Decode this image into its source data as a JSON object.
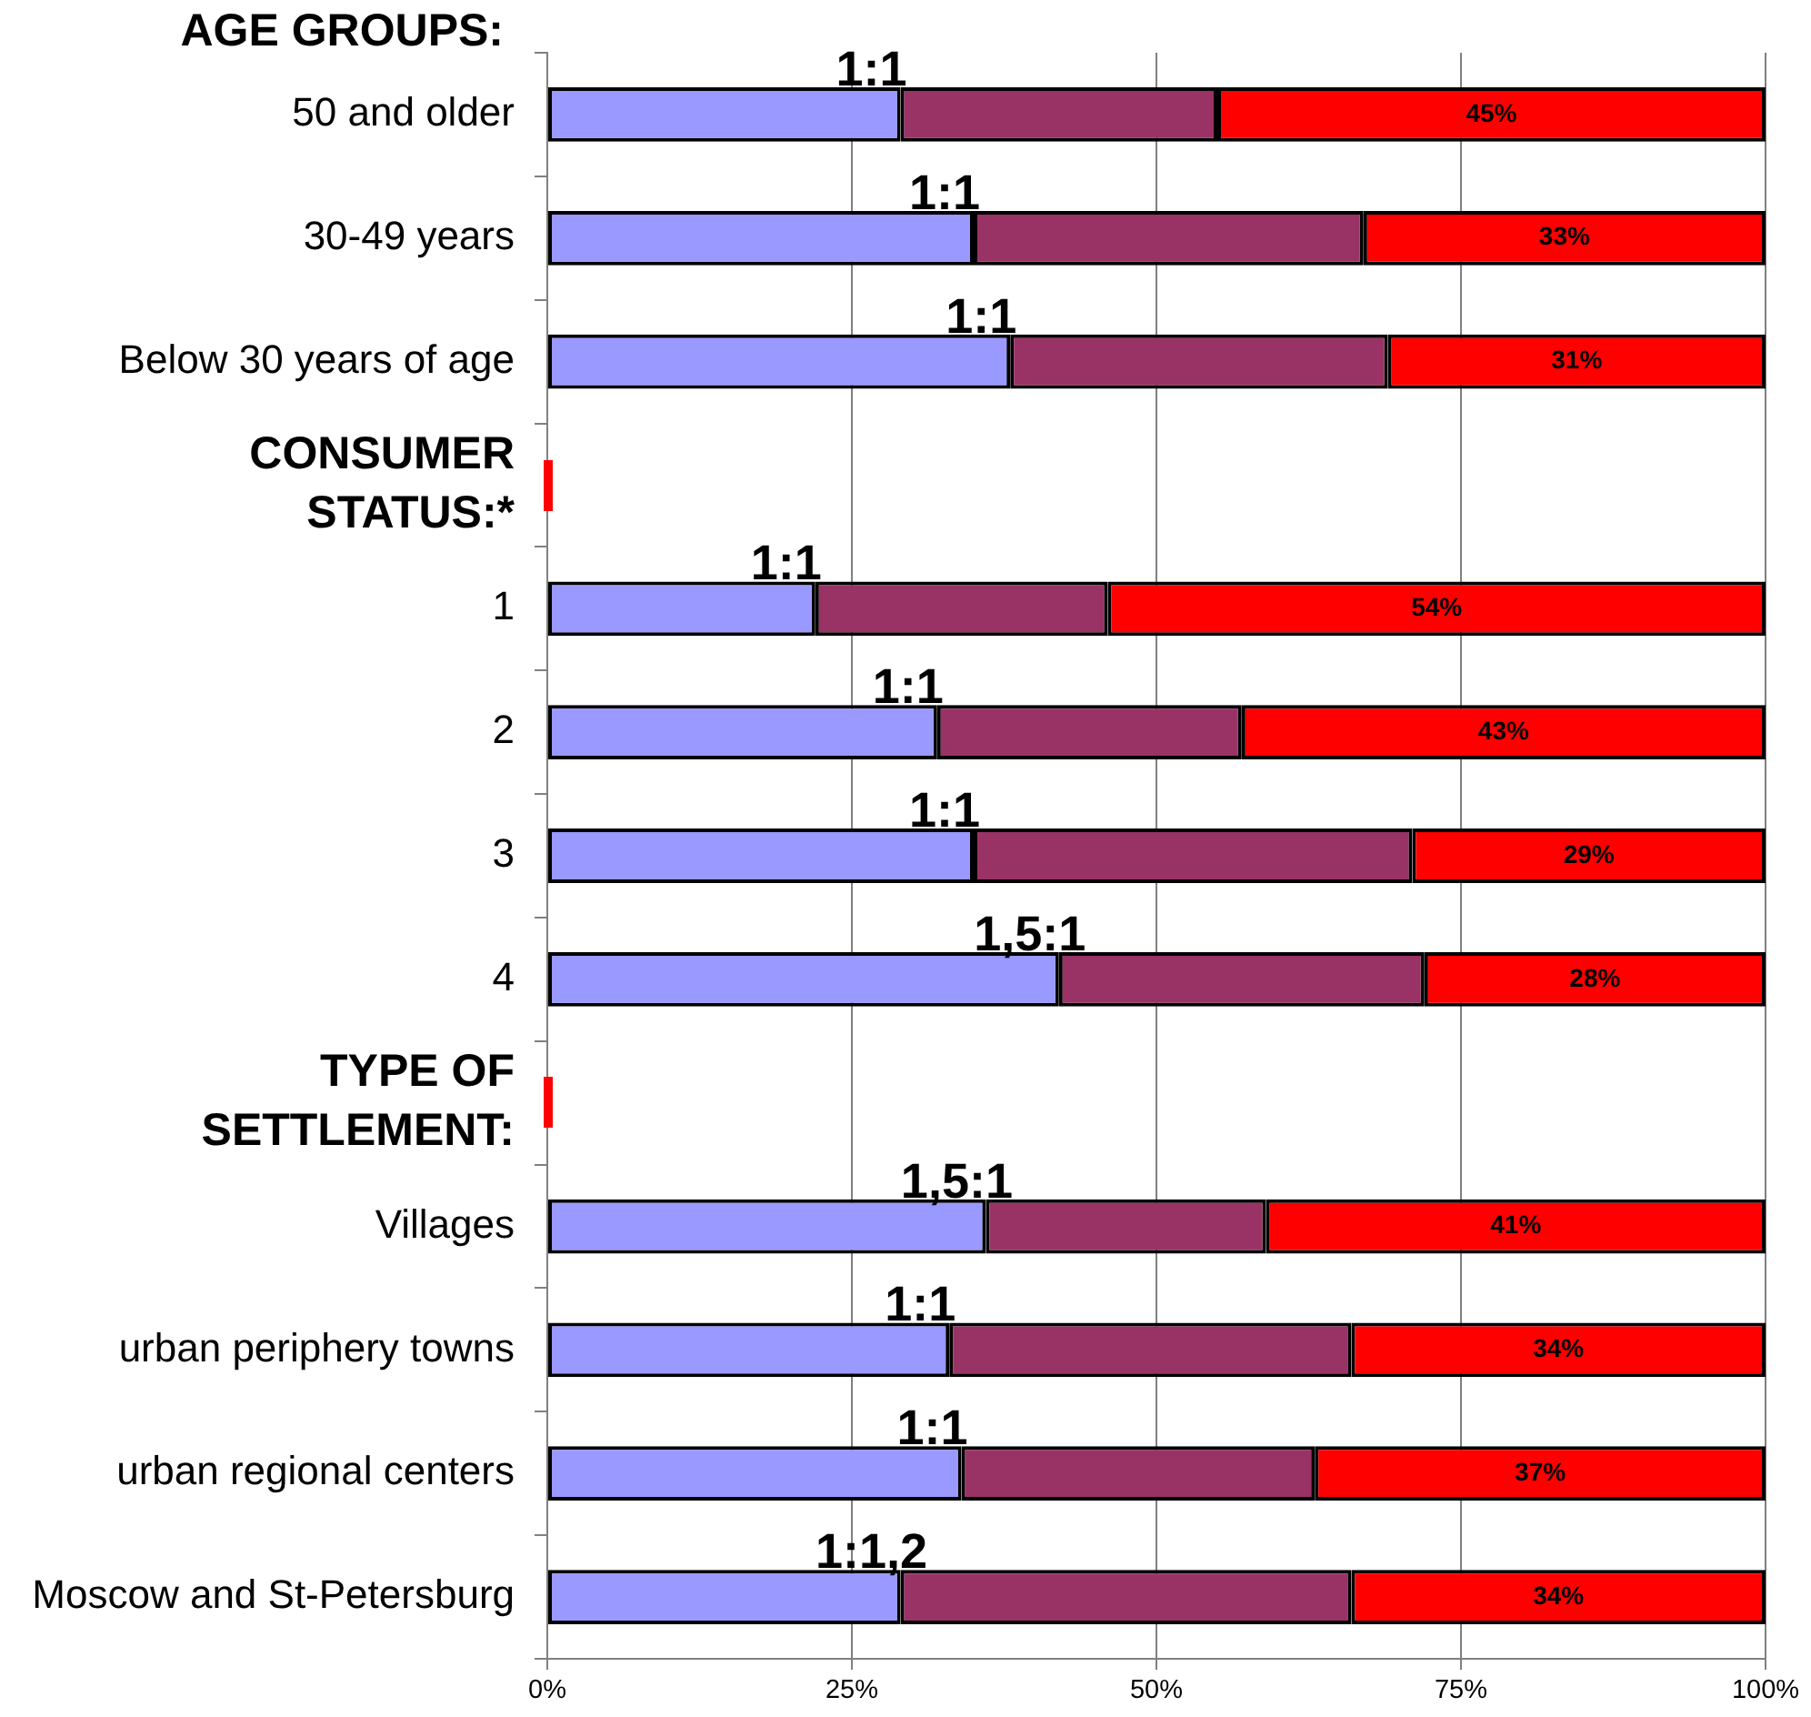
{
  "chart_data": {
    "type": "bar",
    "orientation": "horizontal",
    "stacked": true,
    "categories": [
      "50 and older",
      "30-49 years",
      "Below 30 years of age",
      null,
      "1",
      "2",
      "3",
      "4",
      null,
      "Villages",
      "urban periphery towns",
      "urban regional centers",
      "Moscow and St-Petersburg"
    ],
    "series": [
      {
        "color": "#9999ff",
        "values": [
          29,
          35,
          38,
          null,
          22,
          32,
          35,
          42,
          null,
          36,
          33,
          34,
          29
        ],
        "value_labels": [
          "1:1",
          "1:1",
          "1:1",
          null,
          "1:1",
          "1:1",
          "1:1",
          "1,5:1",
          null,
          "1,5:1",
          "1:1",
          "1:1",
          "1:1,2"
        ]
      },
      {
        "color": "#993366",
        "values": [
          26,
          32,
          31,
          null,
          24,
          25,
          36,
          30,
          null,
          23,
          33,
          29,
          37
        ]
      },
      {
        "color": "#ff0000",
        "values": [
          45,
          33,
          31,
          null,
          54,
          43,
          29,
          28,
          null,
          41,
          34,
          37,
          34
        ],
        "value_labels": [
          "45%",
          "33%",
          "31%",
          null,
          "54%",
          "43%",
          "29%",
          "28%",
          null,
          "41%",
          "34%",
          "37%",
          "34%"
        ]
      }
    ],
    "xlim": [
      0,
      100
    ],
    "xticks": [
      {
        "value": 0,
        "label": "0%"
      },
      {
        "value": 25,
        "label": "25%"
      },
      {
        "value": 50,
        "label": "50%"
      },
      {
        "value": 75,
        "label": "75%"
      },
      {
        "value": 100,
        "label": "100%"
      }
    ],
    "grid": "x",
    "annotations": [
      "AGE GROUPS:",
      "CONSUMER STATUS:*",
      "TYPE OF SETTLEMENT:"
    ]
  }
}
